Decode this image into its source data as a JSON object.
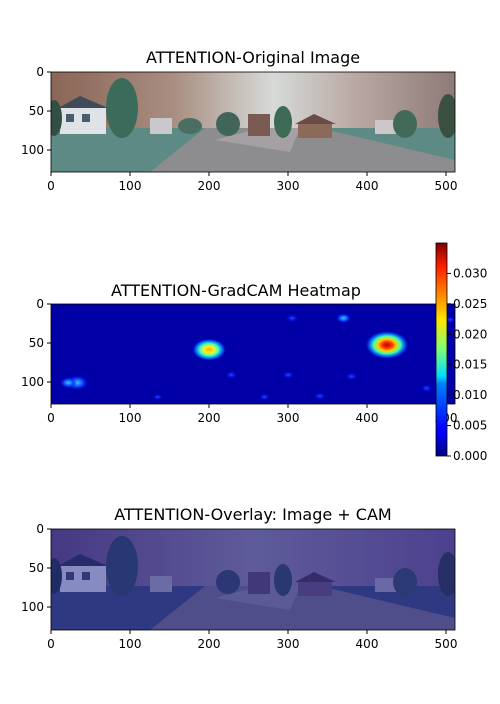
{
  "chart_data": [
    {
      "type": "image",
      "title": "ATTENTION-Original Image",
      "xlim": [
        0,
        511
      ],
      "ylim": [
        0,
        127
      ],
      "x_ticks": [
        "0",
        "100",
        "200",
        "300",
        "400",
        "500"
      ],
      "y_ticks": [
        "0",
        "50",
        "100"
      ]
    },
    {
      "type": "heatmap",
      "title": "ATTENTION-GradCAM Heatmap",
      "xlim": [
        0,
        511
      ],
      "ylim": [
        0,
        127
      ],
      "x_ticks": [
        "0",
        "100",
        "200",
        "300",
        "400",
        "500"
      ],
      "y_ticks": [
        "0",
        "50",
        "100"
      ],
      "colormap": "jet",
      "color_range": [
        0,
        0.035
      ],
      "colorbar_ticks": [
        "0.000",
        "0.005",
        "0.010",
        "0.015",
        "0.020",
        "0.025",
        "0.030"
      ],
      "hotspots": [
        {
          "x": 425,
          "y": 52,
          "value": 0.035
        },
        {
          "x": 200,
          "y": 58,
          "value": 0.026
        },
        {
          "x": 33,
          "y": 100,
          "value": 0.015
        },
        {
          "x": 22,
          "y": 100,
          "value": 0.01
        },
        {
          "x": 370,
          "y": 18,
          "value": 0.008
        },
        {
          "x": 305,
          "y": 18,
          "value": 0.006
        },
        {
          "x": 228,
          "y": 90,
          "value": 0.005
        },
        {
          "x": 300,
          "y": 90,
          "value": 0.005
        },
        {
          "x": 380,
          "y": 92,
          "value": 0.005
        },
        {
          "x": 490,
          "y": 82,
          "value": 0.004
        },
        {
          "x": 475,
          "y": 107,
          "value": 0.005
        },
        {
          "x": 492,
          "y": 107,
          "value": 0.005
        },
        {
          "x": 340,
          "y": 117,
          "value": 0.005
        },
        {
          "x": 270,
          "y": 118,
          "value": 0.004
        },
        {
          "x": 135,
          "y": 118,
          "value": 0.003
        },
        {
          "x": 505,
          "y": 20,
          "value": 0.003
        }
      ]
    },
    {
      "type": "image",
      "title": "ATTENTION-Overlay: Image + CAM",
      "xlim": [
        0,
        511
      ],
      "ylim": [
        0,
        127
      ],
      "x_ticks": [
        "0",
        "100",
        "200",
        "300",
        "400",
        "500"
      ],
      "y_ticks": [
        "0",
        "50",
        "100"
      ]
    }
  ]
}
